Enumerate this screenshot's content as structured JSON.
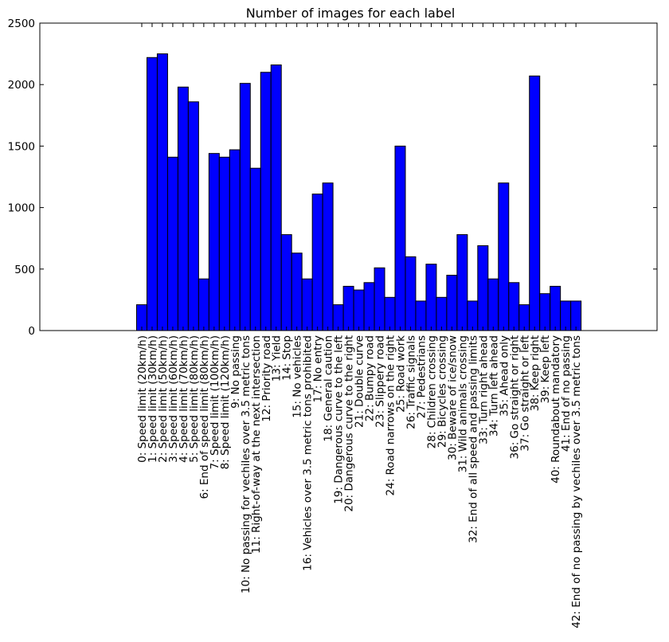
{
  "chart_data": {
    "type": "bar",
    "title": "Number of images for each label",
    "xlabel": "",
    "ylabel": "",
    "ylim": [
      0,
      2500
    ],
    "yticks": [
      0,
      500,
      1000,
      1500,
      2000,
      2500
    ],
    "grid": false,
    "bar_color": "#0000ff",
    "edge_color": "#000000",
    "categories": [
      "0: Speed limit (20km/h)",
      "1: Speed limit (30km/h)",
      "2: Speed limit (50km/h)",
      "3: Speed limit (60km/h)",
      "4: Speed limit (70km/h)",
      "5: Speed limit (80km/h)",
      "6: End of speed limit (80km/h)",
      "7: Speed limit (100km/h)",
      "8: Speed limit (120km/h)",
      "9: No passing",
      "10: No passing for vechiles over 3.5 metric tons",
      "11: Right-of-way at the next intersection",
      "12: Priority road",
      "13: Yield",
      "14: Stop",
      "15: No vehicles",
      "16: Vehicles over 3.5 metric tons prohibited",
      "17: No entry",
      "18: General caution",
      "19: Dangerous curve to the left",
      "20: Dangerous curve to the right",
      "21: Double curve",
      "22: Bumpy road",
      "23: Slippery road",
      "24: Road narrows on the right",
      "25: Road work",
      "26: Traffic signals",
      "27: Pedestrians",
      "28: Children crossing",
      "29: Bicycles crossing",
      "30: Beware of ice/snow",
      "31: Wild animals crossing",
      "32: End of all speed and passing limits",
      "33: Turn right ahead",
      "34: Turn left ahead",
      "35: Ahead only",
      "36: Go straight or right",
      "37: Go straight or left",
      "38: Keep right",
      "39: Keep left",
      "40: Roundabout mandatory",
      "41: End of no passing",
      "42: End of no passing by vechiles over 3.5 metric tons"
    ],
    "values": [
      210,
      2220,
      2250,
      1410,
      1980,
      1860,
      420,
      1440,
      1410,
      1470,
      2010,
      1320,
      2100,
      2160,
      780,
      630,
      420,
      1110,
      1200,
      210,
      360,
      330,
      390,
      510,
      270,
      1500,
      600,
      240,
      540,
      270,
      450,
      780,
      240,
      690,
      420,
      1200,
      390,
      210,
      2070,
      300,
      360,
      240,
      240
    ]
  }
}
